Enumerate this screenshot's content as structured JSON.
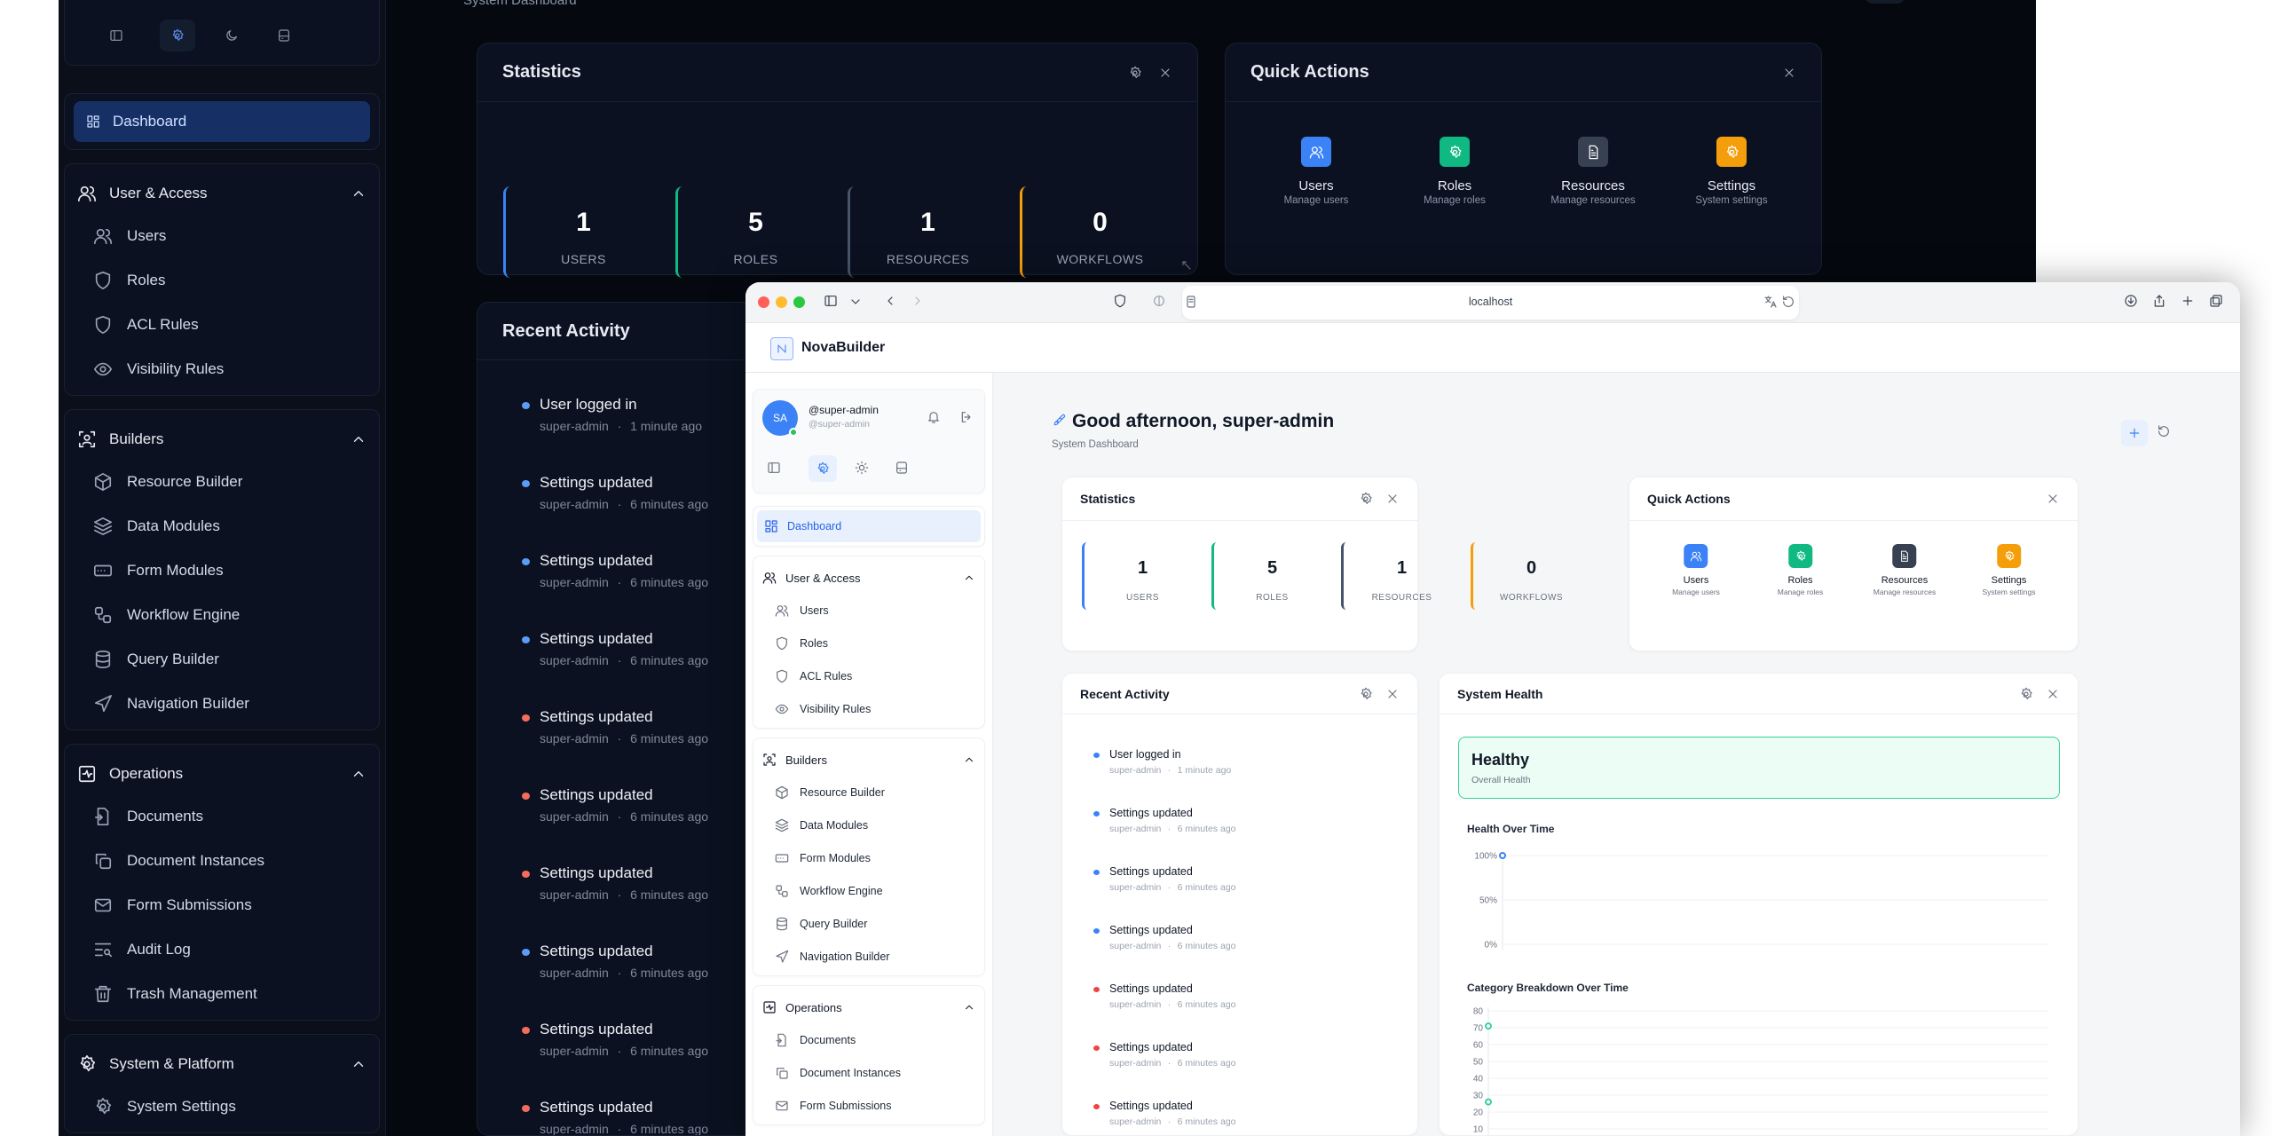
{
  "colors": {
    "accent": "#3b82f6",
    "users": "#3b82f6",
    "roles": "#10b981",
    "resources": "#475569",
    "settings": "#f59e0b",
    "info_dot": "#3b82f6",
    "warn_dot": "#ef4444",
    "healthy_border": "#34d399",
    "healthy_bg": "#ecfdf5"
  },
  "browser": {
    "url": "localhost"
  },
  "app": {
    "name": "NovaBuilder"
  },
  "profile": {
    "initials": "SA",
    "name": "@super-admin",
    "handle": "@super-admin",
    "status": "online"
  },
  "header": {
    "greeting": "Good afternoon, super-admin",
    "subtitle": "System Dashboard"
  },
  "sidebar": {
    "dashboard": "Dashboard",
    "sections": [
      {
        "label": "User & Access",
        "icon": "users-icon",
        "items": [
          {
            "label": "Users",
            "icon": "users-icon"
          },
          {
            "label": "Roles",
            "icon": "shield-icon"
          },
          {
            "label": "ACL Rules",
            "icon": "shield-icon"
          },
          {
            "label": "Visibility Rules",
            "icon": "eye-icon"
          }
        ]
      },
      {
        "label": "Builders",
        "icon": "scan-icon",
        "items": [
          {
            "label": "Resource Builder",
            "icon": "cube-icon"
          },
          {
            "label": "Data Modules",
            "icon": "layers-icon"
          },
          {
            "label": "Form Modules",
            "icon": "form-icon"
          },
          {
            "label": "Workflow Engine",
            "icon": "workflow-icon"
          },
          {
            "label": "Query Builder",
            "icon": "database-icon"
          },
          {
            "label": "Navigation Builder",
            "icon": "navigation-icon"
          }
        ]
      },
      {
        "label": "Operations",
        "icon": "activity-icon",
        "items": [
          {
            "label": "Documents",
            "icon": "document-icon"
          },
          {
            "label": "Document Instances",
            "icon": "copy-icon"
          },
          {
            "label": "Form Submissions",
            "icon": "mail-icon"
          },
          {
            "label": "Audit Log",
            "icon": "audit-icon"
          },
          {
            "label": "Trash Management",
            "icon": "trash-icon"
          }
        ]
      },
      {
        "label": "System & Platform",
        "icon": "gear-icon",
        "items": [
          {
            "label": "System Settings",
            "icon": "gear-icon"
          }
        ]
      }
    ]
  },
  "statistics": {
    "title": "Statistics",
    "items": [
      {
        "value": "1",
        "label": "USERS",
        "color": "#3b82f6"
      },
      {
        "value": "5",
        "label": "ROLES",
        "color": "#10b981"
      },
      {
        "value": "1",
        "label": "RESOURCES",
        "color": "#475569"
      },
      {
        "value": "0",
        "label": "WORKFLOWS",
        "color": "#f59e0b"
      }
    ]
  },
  "quick_actions": {
    "title": "Quick Actions",
    "items": [
      {
        "label": "Users",
        "sub": "Manage users",
        "color": "#3b82f6",
        "icon": "users-icon"
      },
      {
        "label": "Roles",
        "sub": "Manage roles",
        "color": "#10b981",
        "icon": "gear-icon"
      },
      {
        "label": "Resources",
        "sub": "Manage resources",
        "color": "#374151",
        "icon": "file-icon"
      },
      {
        "label": "Settings",
        "sub": "System settings",
        "color": "#f59e0b",
        "icon": "gear-icon"
      }
    ]
  },
  "recent_activity": {
    "title": "Recent Activity",
    "items": [
      {
        "title": "User logged in",
        "user": "super-admin",
        "time": "1 minute ago",
        "level": "info"
      },
      {
        "title": "Settings updated",
        "user": "super-admin",
        "time": "6 minutes ago",
        "level": "info"
      },
      {
        "title": "Settings updated",
        "user": "super-admin",
        "time": "6 minutes ago",
        "level": "info"
      },
      {
        "title": "Settings updated",
        "user": "super-admin",
        "time": "6 minutes ago",
        "level": "info"
      },
      {
        "title": "Settings updated",
        "user": "super-admin",
        "time": "6 minutes ago",
        "level": "warn"
      },
      {
        "title": "Settings updated",
        "user": "super-admin",
        "time": "6 minutes ago",
        "level": "warn"
      },
      {
        "title": "Settings updated",
        "user": "super-admin",
        "time": "6 minutes ago",
        "level": "warn"
      },
      {
        "title": "Settings updated",
        "user": "super-admin",
        "time": "6 minutes ago",
        "level": "info"
      },
      {
        "title": "Settings updated",
        "user": "super-admin",
        "time": "6 minutes ago",
        "level": "warn"
      },
      {
        "title": "Settings updated",
        "user": "super-admin",
        "time": "6 minutes ago",
        "level": "warn"
      }
    ]
  },
  "system_health": {
    "title": "System Health",
    "status": "Healthy",
    "status_sub": "Overall Health"
  },
  "chart_data": [
    {
      "type": "line",
      "title": "Health Over Time",
      "yticks": [
        "0%",
        "50%",
        "100%"
      ],
      "ylim": [
        0,
        100
      ],
      "series": [
        {
          "values": [
            100
          ],
          "color": "#3b82f6"
        }
      ],
      "grid": true
    },
    {
      "type": "line",
      "title": "Category Breakdown Over Time",
      "yticks": [
        "10",
        "20",
        "30",
        "40",
        "50",
        "60",
        "70",
        "80"
      ],
      "ylim": [
        0,
        80
      ],
      "series": [
        {
          "values": [
            71
          ],
          "color": "#34d399"
        },
        {
          "values": [
            26
          ],
          "color": "#34d399"
        }
      ],
      "grid": true
    }
  ]
}
